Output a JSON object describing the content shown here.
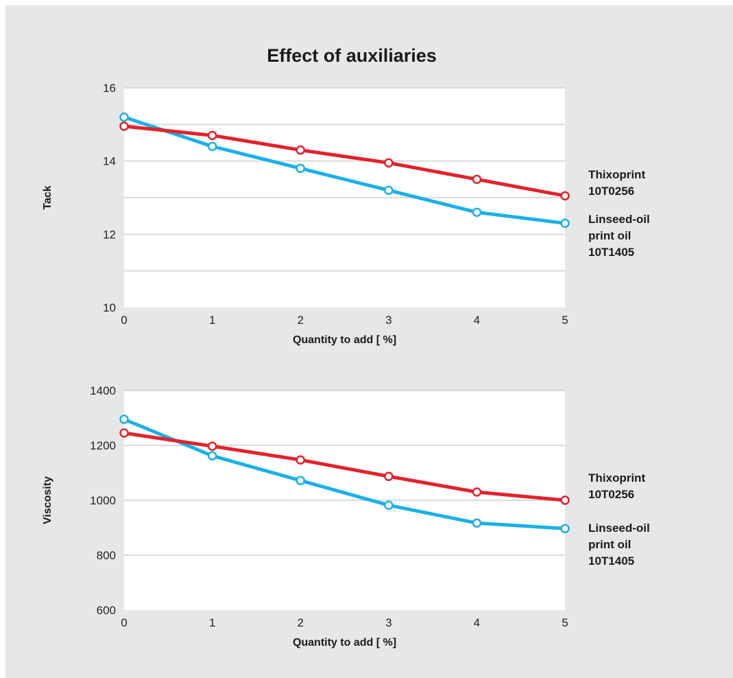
{
  "title": "Effect of auxiliaries",
  "colors": {
    "thixoprint": "#e3222b",
    "linseed": "#1ab0e8",
    "grid": "#d9d9d9",
    "panel": "#e6e7e8"
  },
  "chart_data": [
    {
      "type": "line",
      "ylabel": "Tack",
      "xlabel": "Quantity to add [ %]",
      "x": [
        0,
        1,
        2,
        3,
        4,
        5
      ],
      "xlim": [
        0,
        5
      ],
      "ylim": [
        10,
        16
      ],
      "yticks": [
        10,
        12,
        14,
        16
      ],
      "grid_step": 1,
      "grid": true,
      "legend_placement": "right",
      "series": [
        {
          "key": "thixoprint",
          "name": "Thixoprint 10T0256",
          "label_lines": [
            "Thixoprint",
            "10T0256"
          ],
          "values": [
            14.95,
            14.7,
            14.3,
            13.95,
            13.5,
            13.05
          ]
        },
        {
          "key": "linseed",
          "name": "Linseed-oil print oil 10T1405",
          "label_lines": [
            "Linseed-oil",
            "print oil",
            "10T1405"
          ],
          "values": [
            15.2,
            14.4,
            13.8,
            13.2,
            12.6,
            12.3
          ]
        }
      ]
    },
    {
      "type": "line",
      "ylabel": "Viscosity",
      "xlabel": "Quantity to add [ %]",
      "x": [
        0,
        1,
        2,
        3,
        4,
        5
      ],
      "xlim": [
        0,
        5
      ],
      "ylim": [
        600,
        1400
      ],
      "yticks": [
        600,
        800,
        1000,
        1200,
        1400
      ],
      "grid_step": 200,
      "grid": true,
      "legend_placement": "right",
      "series": [
        {
          "key": "thixoprint",
          "name": "Thixoprint 10T0256",
          "label_lines": [
            "Thixoprint",
            "10T0256"
          ],
          "values": [
            1245,
            1197,
            1147,
            1087,
            1030,
            1000
          ]
        },
        {
          "key": "linseed",
          "name": "Linseed-oil print oil 10T1405",
          "label_lines": [
            "Linseed-oil",
            "print oil",
            "10T1405"
          ],
          "values": [
            1295,
            1162,
            1072,
            982,
            917,
            897
          ]
        }
      ]
    }
  ]
}
